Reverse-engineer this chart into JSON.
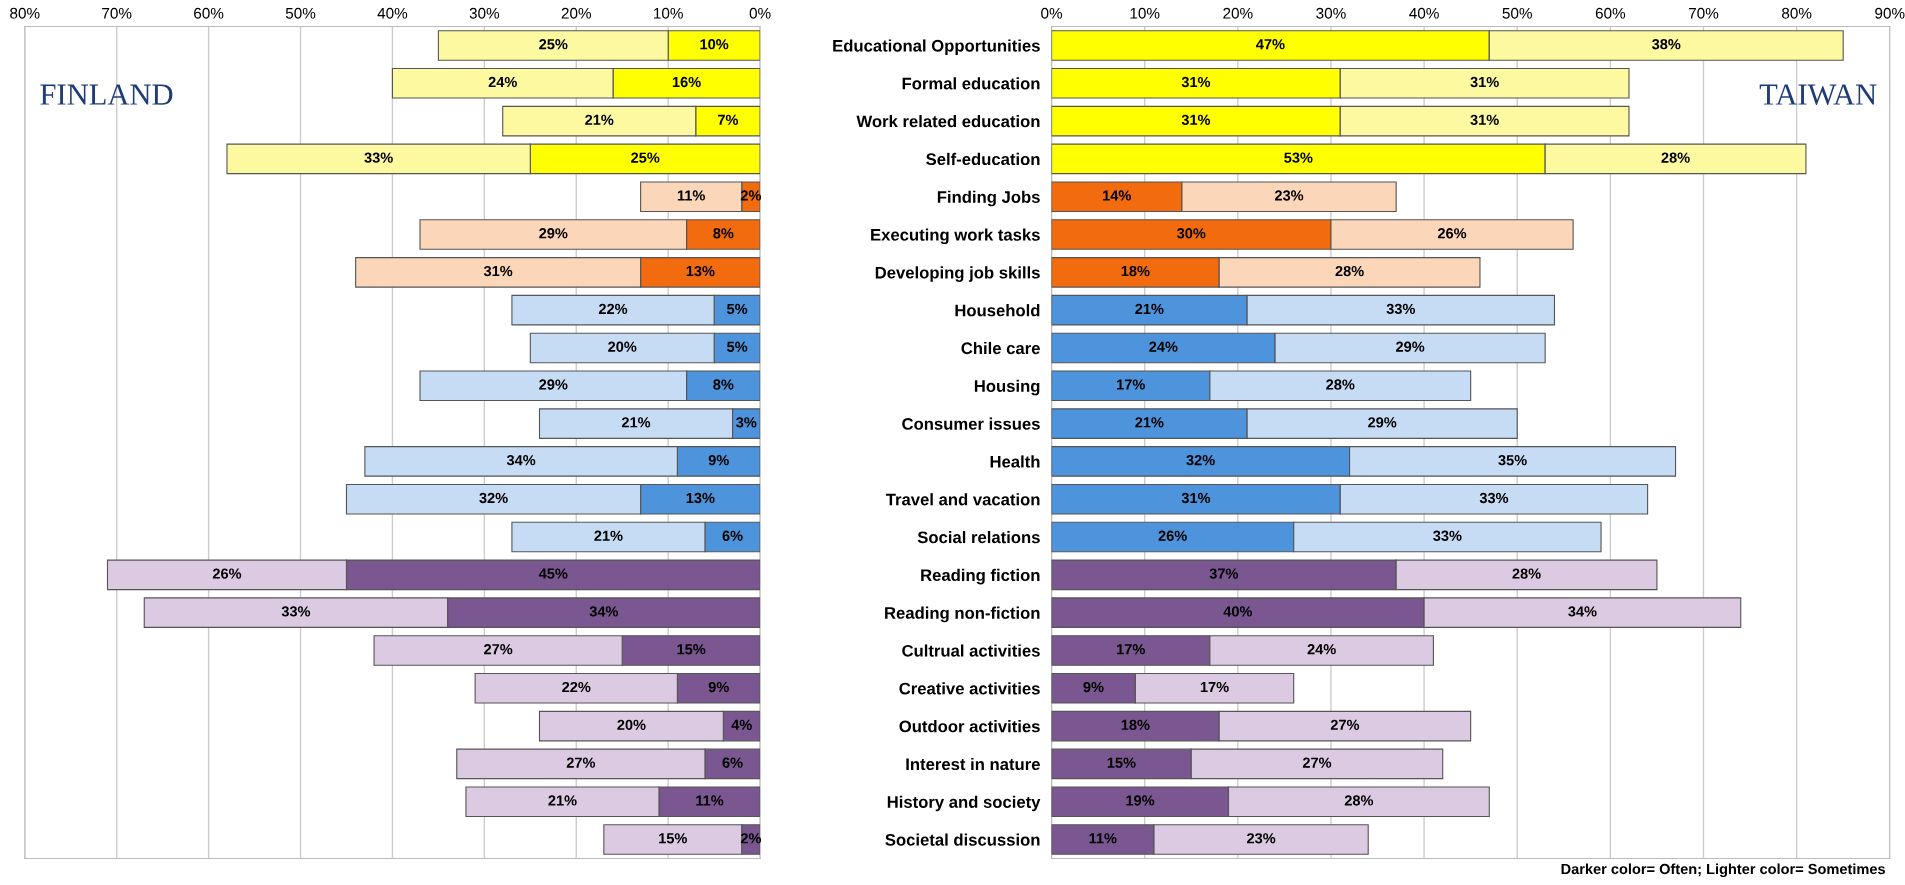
{
  "chart_data": [
    {
      "type": "bar",
      "orientation": "horizontal",
      "stacked": true,
      "grid": "x",
      "tick_labels": "x",
      "annotations": [
        "FINLAND"
      ],
      "categories": [
        null,
        null,
        null,
        null,
        null,
        null,
        null,
        null,
        null,
        null,
        null,
        null,
        null,
        null,
        null,
        null,
        null,
        null,
        null,
        null,
        null,
        null
      ],
      "xlim": [
        80,
        0
      ],
      "xticks": [
        {
          "value": 80,
          "label": "80%"
        },
        {
          "value": 70,
          "label": "70%"
        },
        {
          "value": 60,
          "label": "60%"
        },
        {
          "value": 50,
          "label": "50%"
        },
        {
          "value": 40,
          "label": "40%"
        },
        {
          "value": 30,
          "label": "30%"
        },
        {
          "value": 20,
          "label": "20%"
        },
        {
          "value": 10,
          "label": "10%"
        },
        {
          "value": 0,
          "label": "0%"
        }
      ],
      "series": [
        {
          "values": [
            10,
            16,
            7,
            25,
            2,
            8,
            13,
            5,
            5,
            8,
            3,
            9,
            13,
            6,
            45,
            34,
            15,
            9,
            4,
            6,
            11,
            2
          ],
          "value_labels": [
            "10%",
            "16%",
            "7%",
            "25%",
            "2%",
            "8%",
            "13%",
            "5%",
            "5%",
            "8%",
            "3%",
            "9%",
            "13%",
            "6%",
            "45%",
            "34%",
            "15%",
            "9%",
            "4%",
            "6%",
            "11%",
            "2%"
          ],
          "colors": [
            "#ffff00",
            "#ffff00",
            "#ffff00",
            "#ffff00",
            "#f26b0f",
            "#f26b0f",
            "#f26b0f",
            "#4d94dc",
            "#4d94dc",
            "#4d94dc",
            "#4d94dc",
            "#4d94dc",
            "#4d94dc",
            "#4d94dc",
            "#7a5790",
            "#7a5790",
            "#7a5790",
            "#7a5790",
            "#7a5790",
            "#7a5790",
            "#7a5790",
            "#7a5790"
          ]
        },
        {
          "values": [
            25,
            24,
            21,
            33,
            11,
            29,
            31,
            22,
            20,
            29,
            21,
            34,
            32,
            21,
            26,
            33,
            27,
            22,
            20,
            27,
            21,
            15
          ],
          "value_labels": [
            "25%",
            "24%",
            "21%",
            "33%",
            "11%",
            "29%",
            "31%",
            "22%",
            "20%",
            "29%",
            "21%",
            "34%",
            "32%",
            "21%",
            "26%",
            "33%",
            "27%",
            "22%",
            "20%",
            "27%",
            "21%",
            "15%"
          ],
          "colors": [
            "#fdf9a0",
            "#fdf9a0",
            "#fdf9a0",
            "#fdf9a0",
            "#fbd6b8",
            "#fbd6b8",
            "#fbd6b8",
            "#c6dcf4",
            "#c6dcf4",
            "#c6dcf4",
            "#c6dcf4",
            "#c6dcf4",
            "#c6dcf4",
            "#c6dcf4",
            "#dbcae2",
            "#dbcae2",
            "#dbcae2",
            "#dbcae2",
            "#dbcae2",
            "#dbcae2",
            "#dbcae2",
            "#dbcae2"
          ]
        }
      ]
    },
    {
      "type": "bar",
      "orientation": "horizontal",
      "stacked": true,
      "grid": "x",
      "annotations": [
        "TAIWAN",
        "Darker color= Often; Lighter color= Sometimes"
      ],
      "categories": [
        "Educational Opportunities",
        "Formal education",
        "Work related education",
        "Self-education",
        "Finding Jobs",
        "Executing work tasks",
        "Developing job skills",
        "Household",
        "Chile care",
        "Housing",
        "Consumer issues",
        "Health",
        "Travel and vacation",
        "Social relations",
        "Reading fiction",
        "Reading non-fiction",
        "Cultrual activities",
        "Creative activities",
        "Outdoor activities",
        "Interest in nature",
        "History and society",
        "Societal discussion"
      ],
      "xlim": [
        0,
        90
      ],
      "xticks": [
        {
          "value": 0,
          "label": "0%"
        },
        {
          "value": 10,
          "label": "10%"
        },
        {
          "value": 20,
          "label": "20%"
        },
        {
          "value": 30,
          "label": "30%"
        },
        {
          "value": 40,
          "label": "40%"
        },
        {
          "value": 50,
          "label": "50%"
        },
        {
          "value": 60,
          "label": "60%"
        },
        {
          "value": 70,
          "label": "70%"
        },
        {
          "value": 80,
          "label": "80%"
        },
        {
          "value": 90,
          "label": "90%"
        }
      ],
      "series": [
        {
          "values": [
            47,
            31,
            31,
            53,
            14,
            30,
            18,
            21,
            24,
            17,
            21,
            32,
            31,
            26,
            37,
            40,
            17,
            9,
            18,
            15,
            19,
            11
          ],
          "value_labels": [
            "47%",
            "31%",
            "31%",
            "53%",
            "14%",
            "30%",
            "18%",
            "21%",
            "24%",
            "17%",
            "21%",
            "32%",
            "31%",
            "26%",
            "37%",
            "40%",
            "17%",
            "9%",
            "18%",
            "15%",
            "19%",
            "11%"
          ],
          "colors": [
            "#ffff00",
            "#ffff00",
            "#ffff00",
            "#ffff00",
            "#f26b0f",
            "#f26b0f",
            "#f26b0f",
            "#4d94dc",
            "#4d94dc",
            "#4d94dc",
            "#4d94dc",
            "#4d94dc",
            "#4d94dc",
            "#4d94dc",
            "#7a5790",
            "#7a5790",
            "#7a5790",
            "#7a5790",
            "#7a5790",
            "#7a5790",
            "#7a5790",
            "#7a5790"
          ]
        },
        {
          "values": [
            38,
            31,
            31,
            28,
            23,
            26,
            28,
            33,
            29,
            28,
            29,
            35,
            33,
            33,
            28,
            34,
            24,
            17,
            27,
            27,
            28,
            23
          ],
          "value_labels": [
            "38%",
            "31%",
            "31%",
            "28%",
            "23%",
            "26%",
            "28%",
            "33%",
            "29%",
            "28%",
            "29%",
            "35%",
            "33%",
            "33%",
            "28%",
            "34%",
            "24%",
            "17%",
            "27%",
            "27%",
            "28%",
            "23%"
          ],
          "colors": [
            "#fdf9a0",
            "#fdf9a0",
            "#fdf9a0",
            "#fdf9a0",
            "#fbd6b8",
            "#fbd6b8",
            "#fbd6b8",
            "#c6dcf4",
            "#c6dcf4",
            "#c6dcf4",
            "#c6dcf4",
            "#c6dcf4",
            "#c6dcf4",
            "#c6dcf4",
            "#dbcae2",
            "#dbcae2",
            "#dbcae2",
            "#dbcae2",
            "#dbcae2",
            "#dbcae2",
            "#dbcae2",
            "#dbcae2"
          ]
        }
      ]
    }
  ]
}
